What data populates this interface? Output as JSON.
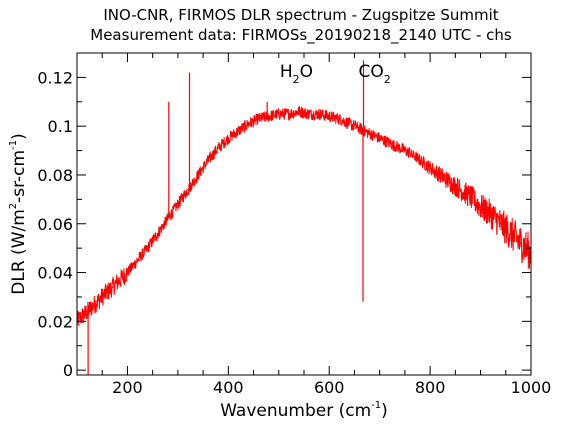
{
  "chart_data": {
    "type": "line",
    "title": "INO-CNR, FIRMOS DLR spectrum - Zugspitze Summit",
    "subtitle": "Measurement data: FIRMOSs_20190218_2140 UTC - chs",
    "xlabel": {
      "text": "Wavenumber (cm",
      "sup": "-1",
      "end": ")"
    },
    "ylabel": {
      "part1": "DLR (W/m",
      "sup1": "2",
      "part2": "-sr-cm",
      "sup2": "-1",
      "part3": ")"
    },
    "xlim": [
      100,
      1000
    ],
    "ylim": [
      -0.002,
      0.13
    ],
    "xticks": [
      200,
      400,
      600,
      800,
      1000
    ],
    "yticks": [
      0,
      0.02,
      0.04,
      0.06,
      0.08,
      0.1,
      0.12
    ],
    "xtick_labels": [
      "200",
      "400",
      "600",
      "800",
      "1000"
    ],
    "ytick_labels": [
      "0",
      "0.02",
      "0.04",
      "0.06",
      "0.08",
      "0.1",
      "0.12"
    ],
    "annotations": [
      {
        "base": "H",
        "sub": "2",
        "rest": "O",
        "x": 535
      },
      {
        "base": "CO",
        "sub": "2",
        "rest": "",
        "x": 690
      }
    ],
    "series": [
      {
        "color": "#ff0000",
        "x": [
          100,
          110,
          120,
          130,
          140,
          150,
          160,
          170,
          180,
          190,
          200,
          220,
          240,
          260,
          280,
          300,
          320,
          340,
          360,
          380,
          400,
          420,
          440,
          460,
          480,
          500,
          520,
          540,
          560,
          580,
          600,
          620,
          640,
          660,
          680,
          700,
          720,
          740,
          760,
          780,
          800,
          820,
          840,
          860,
          880,
          900,
          920,
          940,
          960,
          980,
          1000
        ],
        "values": [
          0.02,
          0.022,
          0.024,
          0.026,
          0.028,
          0.03,
          0.032,
          0.034,
          0.036,
          0.038,
          0.04,
          0.045,
          0.05,
          0.056,
          0.062,
          0.068,
          0.074,
          0.08,
          0.086,
          0.091,
          0.095,
          0.098,
          0.101,
          0.103,
          0.104,
          0.105,
          0.105,
          0.106,
          0.105,
          0.105,
          0.104,
          0.103,
          0.101,
          0.099,
          0.097,
          0.095,
          0.093,
          0.091,
          0.089,
          0.086,
          0.083,
          0.08,
          0.077,
          0.074,
          0.071,
          0.067,
          0.064,
          0.06,
          0.056,
          0.052,
          0.048
        ]
      }
    ],
    "spikes": [
      {
        "x": 122,
        "value": -0.002
      },
      {
        "x": 282,
        "value": 0.11
      },
      {
        "x": 323,
        "value": 0.122
      },
      {
        "x": 477,
        "value": 0.11
      },
      {
        "x": 667,
        "value": 0.028
      },
      {
        "x": 668,
        "value": 0.127
      }
    ],
    "grid": false,
    "legend": "none"
  }
}
